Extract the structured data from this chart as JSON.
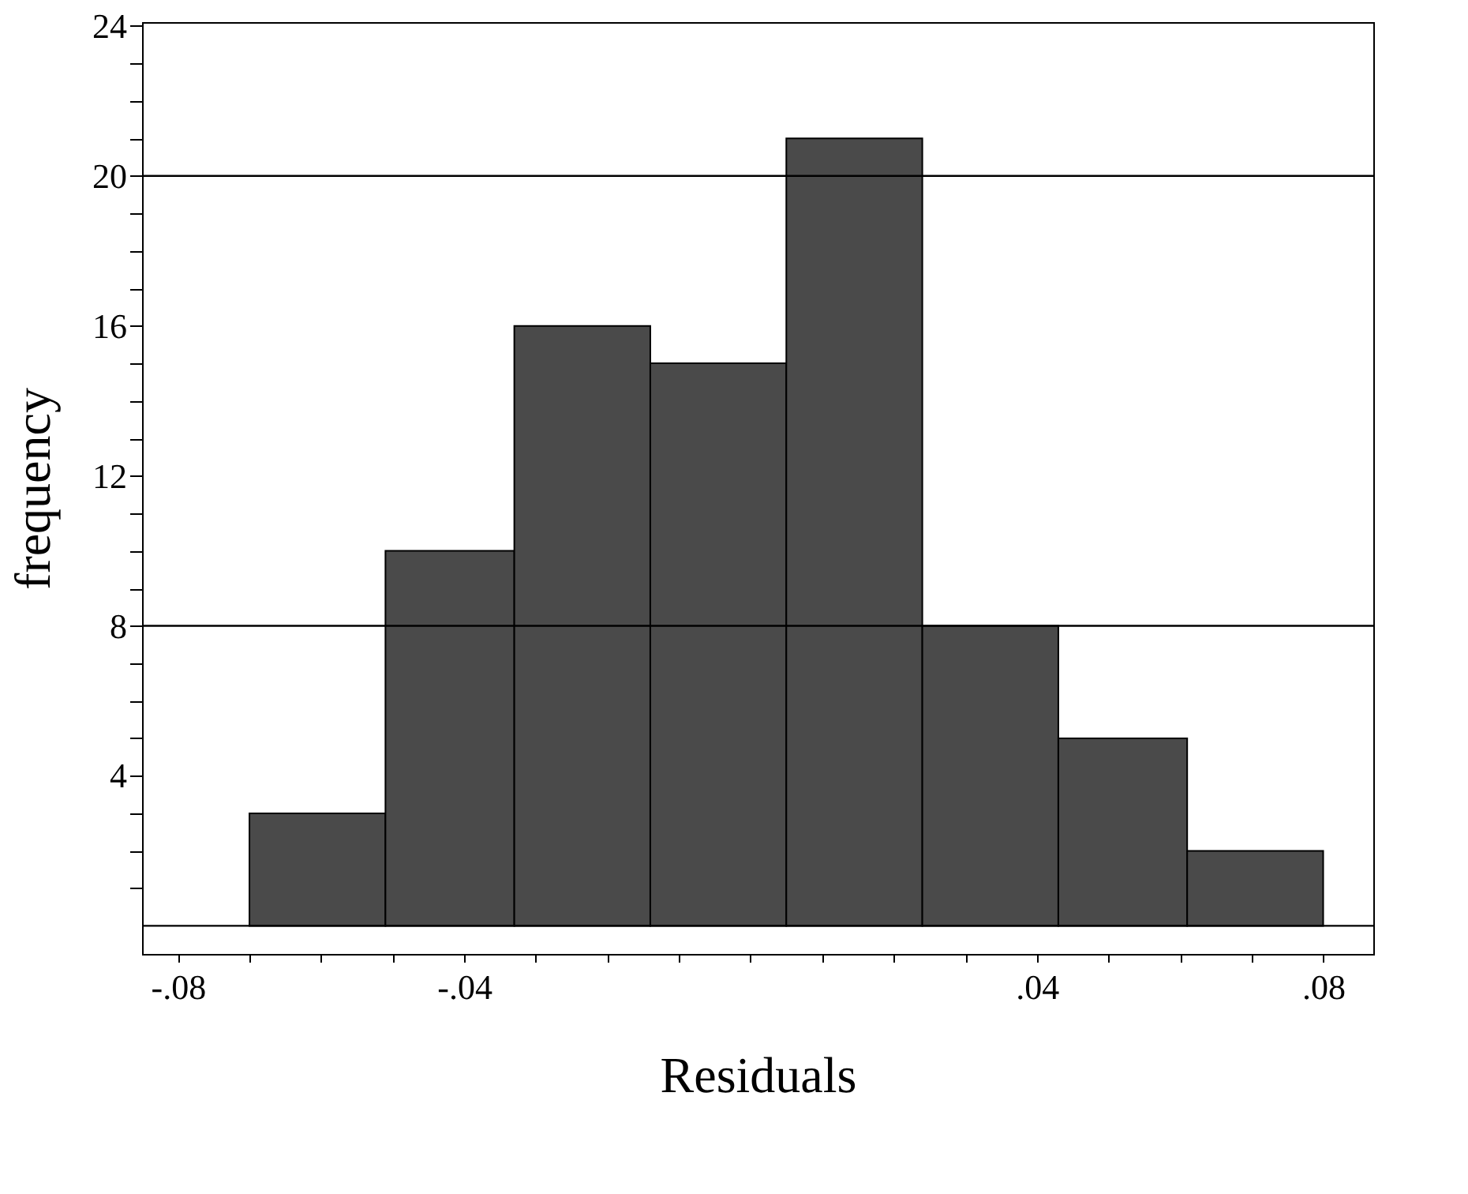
{
  "chart_data": {
    "type": "histogram",
    "xlabel": "Residuals",
    "ylabel": "frequency",
    "bins": [
      -0.07,
      -0.051,
      -0.033,
      -0.014,
      0.005,
      0.024,
      0.043,
      0.061,
      0.08
    ],
    "values": [
      3,
      10,
      16,
      15,
      21,
      8,
      5,
      2
    ],
    "color": "#4a4a4a",
    "xlim": [
      -0.085,
      0.087
    ],
    "ylim": [
      -0.75,
      24.1
    ],
    "xticks": [
      {
        "value": -0.08,
        "label": "-.08"
      },
      {
        "value": -0.07,
        "label": null
      },
      {
        "value": -0.06,
        "label": null
      },
      {
        "value": -0.05,
        "label": null
      },
      {
        "value": -0.04,
        "label": "-.04"
      },
      {
        "value": -0.03,
        "label": null
      },
      {
        "value": -0.02,
        "label": null
      },
      {
        "value": -0.01,
        "label": null
      },
      {
        "value": 0,
        "label": null
      },
      {
        "value": 0.01,
        "label": null
      },
      {
        "value": 0.02,
        "label": null
      },
      {
        "value": 0.03,
        "label": null
      },
      {
        "value": 0.04,
        "label": ".04"
      },
      {
        "value": 0.05,
        "label": null
      },
      {
        "value": 0.06,
        "label": null
      },
      {
        "value": 0.07,
        "label": null
      },
      {
        "value": 0.08,
        "label": ".08"
      }
    ],
    "yticks": [
      {
        "value": 1,
        "label": null
      },
      {
        "value": 2,
        "label": null
      },
      {
        "value": 3,
        "label": null
      },
      4,
      {
        "value": 5,
        "label": null
      },
      {
        "value": 6,
        "label": null
      },
      {
        "value": 7,
        "label": null
      },
      8,
      {
        "value": 9,
        "label": null
      },
      {
        "value": 10,
        "label": null
      },
      {
        "value": 11,
        "label": null
      },
      12,
      {
        "value": 13,
        "label": null
      },
      {
        "value": 14,
        "label": null
      },
      {
        "value": 15,
        "label": null
      },
      16,
      {
        "value": 17,
        "label": null
      },
      {
        "value": 18,
        "label": null
      },
      {
        "value": 19,
        "label": null
      },
      20,
      {
        "value": 21,
        "label": null
      },
      {
        "value": 22,
        "label": null
      },
      {
        "value": 23,
        "label": null
      },
      24
    ],
    "ref_lines": [
      {
        "axis": "y",
        "value": 0,
        "color": "#000000"
      },
      {
        "axis": "y",
        "value": 8,
        "color": "#000000"
      },
      {
        "axis": "y",
        "value": 20,
        "color": "#000000"
      }
    ],
    "grid": false
  }
}
